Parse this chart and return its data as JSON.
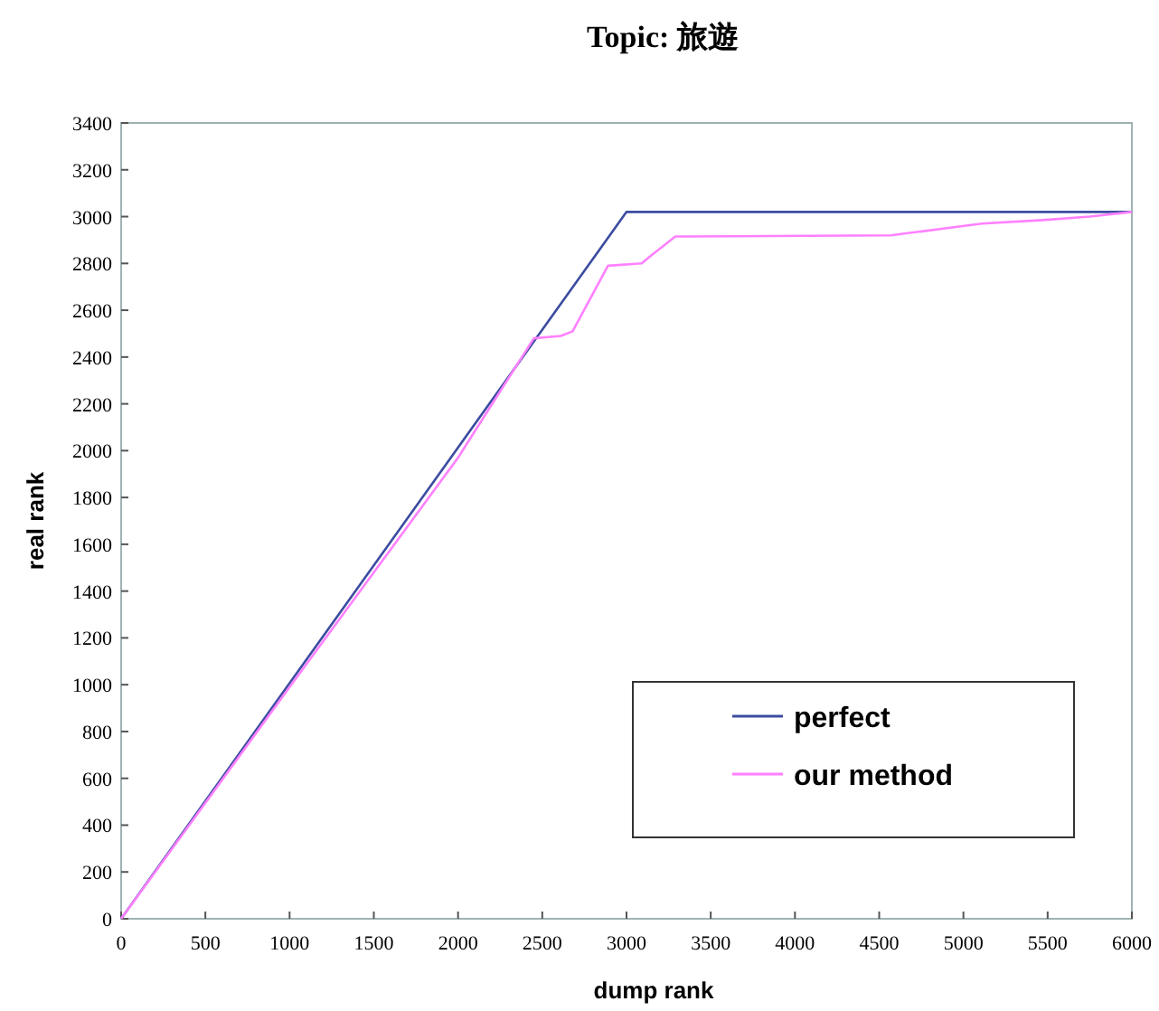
{
  "chart_data": {
    "type": "line",
    "title": "Topic: 旅遊",
    "xlabel": "dump rank",
    "ylabel": "real rank",
    "xlim": [
      0,
      6000
    ],
    "ylim": [
      0,
      3400
    ],
    "xticks": [
      0,
      500,
      1000,
      1500,
      2000,
      2500,
      3000,
      3500,
      4000,
      4500,
      5000,
      5500,
      6000
    ],
    "yticks": [
      0,
      200,
      400,
      600,
      800,
      1000,
      1200,
      1400,
      1600,
      1800,
      2000,
      2200,
      2400,
      2600,
      2800,
      3000,
      3200,
      3400
    ],
    "legend": "bottom right",
    "series": [
      {
        "name": "perfect",
        "color": "#3c4ca0",
        "x": [
          0,
          3000,
          6000
        ],
        "values": [
          0,
          3020,
          3020
        ]
      },
      {
        "name": "our method",
        "color": "#ff80ff",
        "x": [
          0,
          1000,
          2000,
          2450,
          2610,
          2680,
          2890,
          3090,
          3140,
          3290,
          4570,
          5110,
          5470,
          5750,
          6000
        ],
        "values": [
          0,
          990,
          1970,
          2480,
          2490,
          2510,
          2790,
          2800,
          2830,
          2915,
          2920,
          2970,
          2985,
          3000,
          3020
        ]
      }
    ]
  }
}
